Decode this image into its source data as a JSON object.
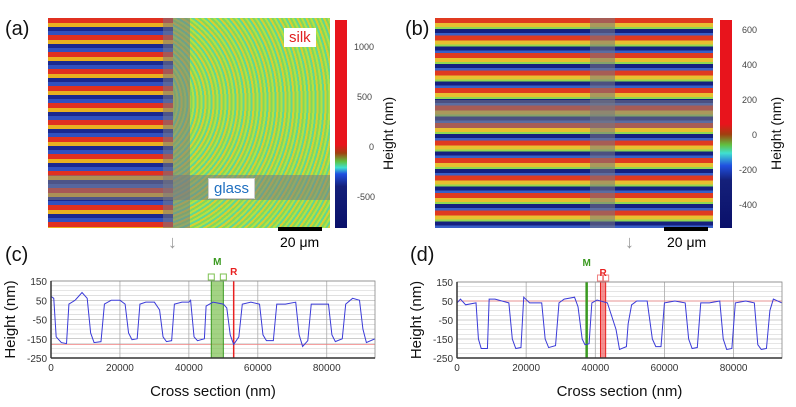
{
  "panels": {
    "a": "(a)",
    "b": "(b)",
    "c": "(c)",
    "d": "(d)"
  },
  "image_a": {
    "annotation_silk": "silk",
    "annotation_glass": "glass",
    "scale_label": "20 μm",
    "colorbar": {
      "title": "Height (nm)",
      "ticks": [
        "1000",
        "500",
        "0",
        "-500"
      ]
    },
    "arrow": "↓"
  },
  "image_b": {
    "scale_label": "20 μm",
    "colorbar": {
      "title": "Height (nm)",
      "ticks": [
        "600",
        "400",
        "200",
        "0",
        "-200",
        "-400"
      ]
    },
    "arrow": "↓"
  },
  "colors": {
    "profile": "#3a3ad8",
    "marker_m": "#3a9a20",
    "marker_r": "#e82020",
    "band_m": "#7cc050",
    "band_r": "#f06060"
  },
  "chart_data": [
    {
      "type": "line",
      "id": "c",
      "xlabel": "Cross section (nm)",
      "ylabel": "Height (nm)",
      "xlim": [
        0,
        94000
      ],
      "ylim": [
        -250,
        150
      ],
      "xticks": [
        "0",
        "20000",
        "40000",
        "60000",
        "80000"
      ],
      "yticks": [
        "150",
        "50",
        "-50",
        "-150",
        "-250"
      ],
      "markers": {
        "M": {
          "label": "M",
          "band": [
            46500,
            50000
          ]
        },
        "R": {
          "label": "R",
          "line": 53000
        },
        "ref_y": -180
      },
      "series": [
        {
          "name": "profile",
          "points": [
            [
              0,
              70
            ],
            [
              800,
              60
            ],
            [
              1500,
              -140
            ],
            [
              3000,
              -170
            ],
            [
              4500,
              -175
            ],
            [
              5200,
              30
            ],
            [
              7000,
              50
            ],
            [
              9000,
              90
            ],
            [
              10500,
              60
            ],
            [
              11500,
              -120
            ],
            [
              12500,
              -170
            ],
            [
              14500,
              -165
            ],
            [
              15500,
              30
            ],
            [
              17500,
              50
            ],
            [
              20000,
              50
            ],
            [
              21500,
              30
            ],
            [
              22500,
              -120
            ],
            [
              23500,
              -155
            ],
            [
              25000,
              -150
            ],
            [
              25800,
              30
            ],
            [
              27500,
              40
            ],
            [
              30000,
              40
            ],
            [
              31500,
              0
            ],
            [
              32500,
              -140
            ],
            [
              33500,
              -165
            ],
            [
              35000,
              -160
            ],
            [
              35800,
              30
            ],
            [
              38000,
              40
            ],
            [
              40000,
              40
            ],
            [
              40500,
              50
            ],
            [
              41500,
              -140
            ],
            [
              42500,
              -160
            ],
            [
              44500,
              -150
            ],
            [
              45000,
              20
            ],
            [
              47000,
              40
            ],
            [
              50000,
              30
            ],
            [
              51000,
              10
            ],
            [
              52000,
              -130
            ],
            [
              53000,
              -180
            ],
            [
              54500,
              -140
            ],
            [
              55500,
              30
            ],
            [
              58000,
              40
            ],
            [
              60500,
              30
            ],
            [
              61500,
              -130
            ],
            [
              62500,
              -160
            ],
            [
              64500,
              -160
            ],
            [
              65500,
              30
            ],
            [
              68000,
              30
            ],
            [
              71000,
              40
            ],
            [
              72000,
              -130
            ],
            [
              73000,
              -190
            ],
            [
              74500,
              -160
            ],
            [
              75500,
              30
            ],
            [
              78000,
              30
            ],
            [
              80500,
              30
            ],
            [
              81500,
              -130
            ],
            [
              82500,
              -165
            ],
            [
              84500,
              -150
            ],
            [
              85500,
              30
            ],
            [
              87500,
              60
            ],
            [
              89500,
              50
            ],
            [
              90500,
              -100
            ],
            [
              91500,
              -170
            ],
            [
              94000,
              -150
            ]
          ]
        }
      ]
    },
    {
      "type": "line",
      "id": "d",
      "xlabel": "Cross section (nm)",
      "ylabel": "Height (nm)",
      "xlim": [
        0,
        94000
      ],
      "ylim": [
        -250,
        150
      ],
      "xticks": [
        "0",
        "20000",
        "40000",
        "60000",
        "80000"
      ],
      "yticks": [
        "150",
        "50",
        "-50",
        "-150",
        "-250"
      ],
      "markers": {
        "M": {
          "label": "M",
          "line": 37500
        },
        "R": {
          "label": "R",
          "band": [
            41500,
            43000
          ]
        },
        "ref_y": 50
      },
      "series": [
        {
          "name": "profile",
          "points": [
            [
              0,
              40
            ],
            [
              1000,
              60
            ],
            [
              2500,
              30
            ],
            [
              5500,
              40
            ],
            [
              6200,
              -150
            ],
            [
              7000,
              -200
            ],
            [
              8800,
              -200
            ],
            [
              9300,
              60
            ],
            [
              11000,
              60
            ],
            [
              15000,
              40
            ],
            [
              16000,
              -150
            ],
            [
              17000,
              -200
            ],
            [
              18500,
              -195
            ],
            [
              19300,
              70
            ],
            [
              21000,
              40
            ],
            [
              24500,
              40
            ],
            [
              25500,
              -150
            ],
            [
              26500,
              -195
            ],
            [
              28500,
              -185
            ],
            [
              29500,
              40
            ],
            [
              31000,
              60
            ],
            [
              34000,
              70
            ],
            [
              35000,
              20
            ],
            [
              36200,
              -150
            ],
            [
              37000,
              -180
            ],
            [
              38200,
              -175
            ],
            [
              39000,
              40
            ],
            [
              40500,
              55
            ],
            [
              43500,
              40
            ],
            [
              46000,
              -100
            ],
            [
              47000,
              -205
            ],
            [
              49000,
              -190
            ],
            [
              49500,
              -70
            ],
            [
              50500,
              30
            ],
            [
              52000,
              50
            ],
            [
              55000,
              50
            ],
            [
              56500,
              -150
            ],
            [
              57500,
              -190
            ],
            [
              59000,
              -190
            ],
            [
              60000,
              40
            ],
            [
              63000,
              50
            ],
            [
              66000,
              40
            ],
            [
              67000,
              -150
            ],
            [
              68000,
              -200
            ],
            [
              69500,
              -195
            ],
            [
              70500,
              40
            ],
            [
              73000,
              40
            ],
            [
              76000,
              50
            ],
            [
              77000,
              -150
            ],
            [
              78000,
              -205
            ],
            [
              79500,
              -200
            ],
            [
              80500,
              40
            ],
            [
              83500,
              50
            ],
            [
              86000,
              40
            ],
            [
              87000,
              -180
            ],
            [
              88000,
              -205
            ],
            [
              89500,
              -200
            ],
            [
              90500,
              0
            ],
            [
              91500,
              60
            ],
            [
              94000,
              40
            ]
          ]
        }
      ]
    }
  ]
}
